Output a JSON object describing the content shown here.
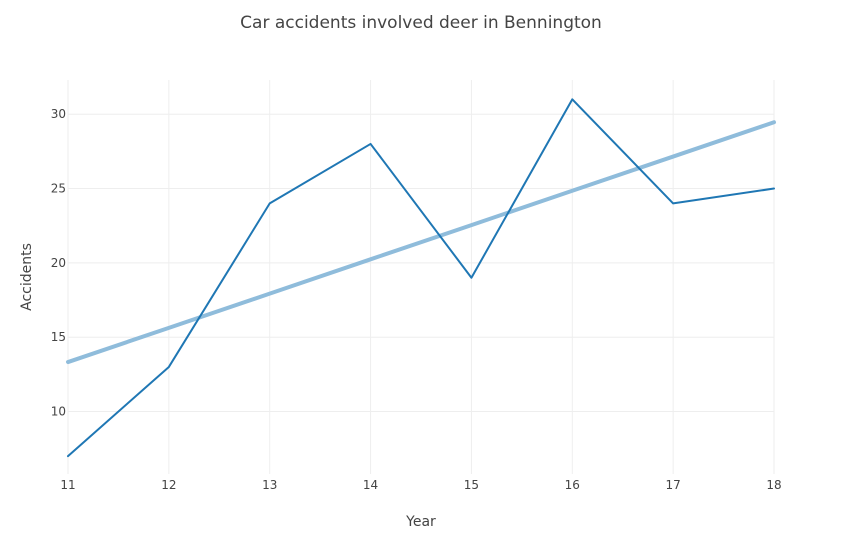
{
  "chart_data": {
    "type": "line",
    "title": "Car accidents involved deer in Bennington",
    "xlabel": "Year",
    "ylabel": "Accidents",
    "x": [
      11,
      12,
      13,
      14,
      15,
      16,
      17,
      18
    ],
    "xlim": [
      11,
      18
    ],
    "ylim": [
      5.8,
      32.3
    ],
    "x_ticks": [
      11,
      12,
      13,
      14,
      15,
      16,
      17,
      18
    ],
    "y_ticks": [
      10,
      15,
      20,
      25,
      30
    ],
    "grid": true,
    "series": [
      {
        "values": [
          7,
          13,
          24,
          28,
          19,
          31,
          24,
          25
        ],
        "color": "#1f77b4",
        "style": "line"
      },
      {
        "values": [
          13.33,
          15.63,
          17.93,
          20.24,
          22.54,
          24.85,
          27.15,
          29.46
        ],
        "color": "#8fbcdb",
        "style": "trend"
      }
    ]
  }
}
